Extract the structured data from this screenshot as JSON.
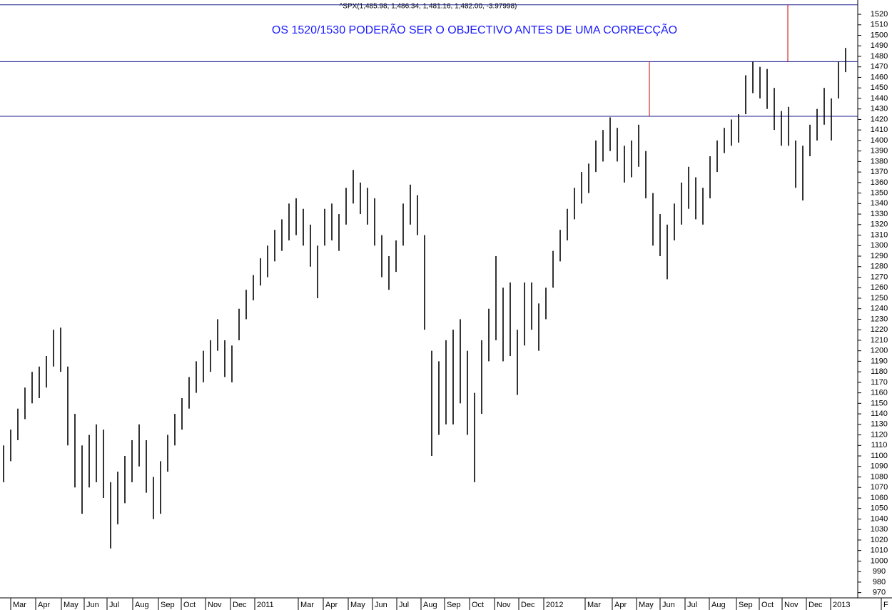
{
  "chart_data": {
    "type": "range-bar",
    "header": "^SPX(1,485.98, 1,486.34, 1,481.16, 1,482.00, -3.97998)",
    "title": "OS 1520/1530 PODERÃO SER O OBJECTIVO ANTES DE UMA CORRECÇÃO",
    "color": "#000000",
    "high": [
      1110,
      1125,
      1145,
      1165,
      1180,
      1185,
      1195,
      1220,
      1222,
      1185,
      1140,
      1110,
      1120,
      1130,
      1125,
      1075,
      1085,
      1100,
      1115,
      1130,
      1115,
      1080,
      1095,
      1120,
      1140,
      1155,
      1175,
      1190,
      1200,
      1210,
      1230,
      1210,
      1205,
      1240,
      1258,
      1272,
      1288,
      1300,
      1315,
      1325,
      1340,
      1345,
      1335,
      1320,
      1300,
      1335,
      1340,
      1330,
      1355,
      1372,
      1360,
      1355,
      1345,
      1310,
      1290,
      1305,
      1340,
      1358,
      1348,
      1310,
      1200,
      1190,
      1210,
      1220,
      1230,
      1200,
      1160,
      1210,
      1240,
      1290,
      1260,
      1265,
      1220,
      1265,
      1265,
      1245,
      1260,
      1295,
      1315,
      1335,
      1355,
      1370,
      1378,
      1400,
      1410,
      1422,
      1412,
      1395,
      1400,
      1415,
      1390,
      1350,
      1330,
      1320,
      1340,
      1360,
      1375,
      1365,
      1355,
      1385,
      1400,
      1412,
      1420,
      1425,
      1462,
      1475,
      1470,
      1468,
      1450,
      1428,
      1432,
      1400,
      1395,
      1415,
      1430,
      1450,
      1440,
      1475,
      1488
    ],
    "low": [
      1075,
      1095,
      1115,
      1135,
      1150,
      1155,
      1165,
      1185,
      1180,
      1110,
      1070,
      1045,
      1070,
      1075,
      1060,
      1012,
      1035,
      1055,
      1075,
      1090,
      1065,
      1040,
      1045,
      1085,
      1110,
      1125,
      1145,
      1160,
      1170,
      1180,
      1200,
      1175,
      1170,
      1210,
      1230,
      1248,
      1262,
      1270,
      1285,
      1295,
      1305,
      1310,
      1300,
      1280,
      1250,
      1300,
      1305,
      1295,
      1320,
      1340,
      1330,
      1320,
      1300,
      1270,
      1258,
      1275,
      1300,
      1320,
      1310,
      1220,
      1100,
      1120,
      1130,
      1130,
      1150,
      1120,
      1075,
      1140,
      1190,
      1210,
      1190,
      1195,
      1158,
      1205,
      1220,
      1200,
      1230,
      1260,
      1285,
      1305,
      1325,
      1340,
      1350,
      1370,
      1380,
      1390,
      1380,
      1360,
      1365,
      1375,
      1345,
      1300,
      1290,
      1268,
      1305,
      1320,
      1335,
      1325,
      1320,
      1345,
      1370,
      1388,
      1395,
      1398,
      1425,
      1445,
      1440,
      1430,
      1410,
      1395,
      1395,
      1355,
      1343,
      1385,
      1400,
      1415,
      1400,
      1440,
      1465
    ],
    "xlim": [
      -0.5,
      119.5
    ],
    "xticks": [
      {
        "value": 1,
        "label": "Mar"
      },
      {
        "value": 4.5,
        "label": "Apr"
      },
      {
        "value": 8.1,
        "label": "May"
      },
      {
        "value": 11.3,
        "label": "Jun"
      },
      {
        "value": 14.5,
        "label": "Jul"
      },
      {
        "value": 18.1,
        "label": "Aug"
      },
      {
        "value": 21.7,
        "label": "Sep"
      },
      {
        "value": 24.9,
        "label": "Oct"
      },
      {
        "value": 28.3,
        "label": "Nov"
      },
      {
        "value": 31.8,
        "label": "Dec"
      },
      {
        "value": 35.2,
        "label": "2011"
      },
      {
        "value": 41.3,
        "label": "Mar"
      },
      {
        "value": 44.8,
        "label": "Apr"
      },
      {
        "value": 48.3,
        "label": "May"
      },
      {
        "value": 51.7,
        "label": "Jun"
      },
      {
        "value": 55.1,
        "label": "Jul"
      },
      {
        "value": 58.5,
        "label": "Aug"
      },
      {
        "value": 61.8,
        "label": "Sep"
      },
      {
        "value": 65.3,
        "label": "Oct"
      },
      {
        "value": 68.8,
        "label": "Nov"
      },
      {
        "value": 72.2,
        "label": "Dec"
      },
      {
        "value": 75.7,
        "label": "2012"
      },
      {
        "value": 81.5,
        "label": "Mar"
      },
      {
        "value": 85.3,
        "label": "Apr"
      },
      {
        "value": 88.7,
        "label": "May"
      },
      {
        "value": 92,
        "label": "Jun"
      },
      {
        "value": 95.5,
        "label": "Jul"
      },
      {
        "value": 98.9,
        "label": "Aug"
      },
      {
        "value": 102.7,
        "label": "Sep"
      },
      {
        "value": 105.9,
        "label": "Oct"
      },
      {
        "value": 109.1,
        "label": "Nov"
      },
      {
        "value": 112.5,
        "label": "Dec"
      },
      {
        "value": 115.9,
        "label": "2013"
      },
      {
        "value": 123,
        "label": "F"
      }
    ],
    "ylim": [
      965,
      1533.6
    ],
    "yticks": [
      970,
      980,
      990,
      1000,
      1010,
      1020,
      1030,
      1040,
      1050,
      1060,
      1070,
      1080,
      1090,
      1100,
      1110,
      1120,
      1130,
      1140,
      1150,
      1160,
      1170,
      1180,
      1190,
      1200,
      1210,
      1220,
      1230,
      1240,
      1250,
      1260,
      1270,
      1280,
      1290,
      1300,
      1310,
      1320,
      1330,
      1340,
      1350,
      1360,
      1370,
      1380,
      1390,
      1400,
      1410,
      1420,
      1430,
      1440,
      1450,
      1460,
      1470,
      1480,
      1490,
      1500,
      1510,
      1520
    ],
    "reference_lines": {
      "horizontal": {
        "color": "#1c1c8c",
        "values": [
          1529,
          1475,
          1423
        ]
      },
      "vertical": {
        "color": "#cc0000",
        "lines": [
          {
            "x": 90.5,
            "from": 1423,
            "to": 1475
          },
          {
            "x": 109.9,
            "from": 1475,
            "to": 1529
          }
        ]
      }
    }
  }
}
